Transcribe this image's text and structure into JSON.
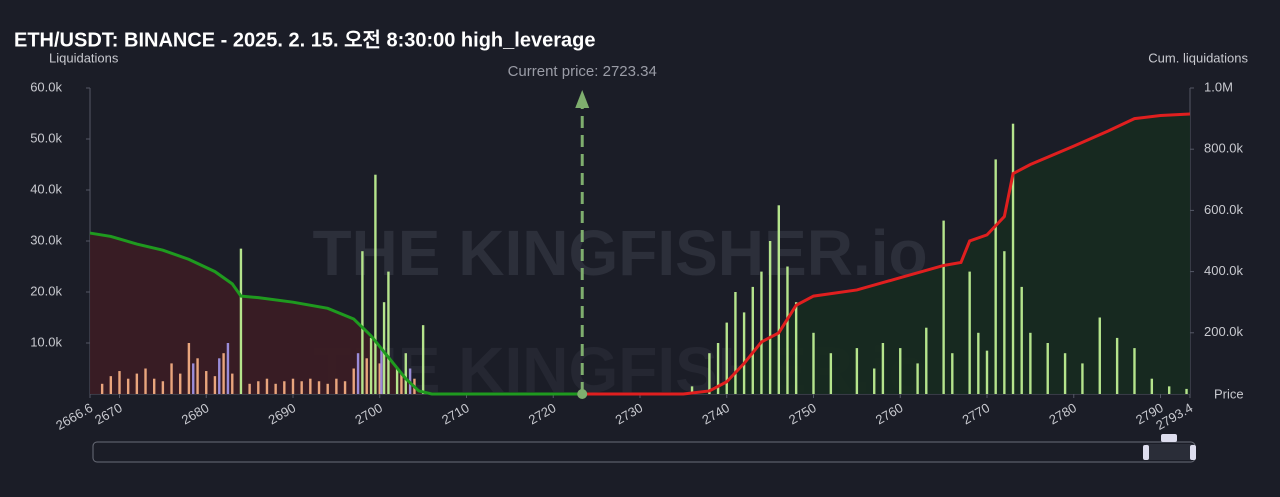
{
  "chart_data": {
    "type": "bar",
    "title": "ETH/USDT: BINANCE - 2025. 2. 15. 오전 8:30:00 high_leverage",
    "y_label": "Liquidations",
    "y2_label": "Cum. liquidations",
    "x_label": "Price",
    "watermark": "THE KINGFISHER.io",
    "xlim": [
      2666.6,
      2793.4
    ],
    "xticks": [
      2666.6,
      2670,
      2680,
      2690,
      2700,
      2710,
      2720,
      2730,
      2740,
      2750,
      2760,
      2770,
      2780,
      2790,
      2793.4
    ],
    "ylim": [
      0,
      60000
    ],
    "yticks": [
      {
        "value": 10000,
        "label": "10.0k"
      },
      {
        "value": 20000,
        "label": "20.0k"
      },
      {
        "value": 30000,
        "label": "30.0k"
      },
      {
        "value": 40000,
        "label": "40.0k"
      },
      {
        "value": 50000,
        "label": "50.0k"
      },
      {
        "value": 60000,
        "label": "60.0k"
      }
    ],
    "y2lim": [
      0,
      1000000
    ],
    "y2ticks": [
      {
        "value": 200000,
        "label": "200.0k"
      },
      {
        "value": 400000,
        "label": "400.0k"
      },
      {
        "value": 600000,
        "label": "600.0k"
      },
      {
        "value": 800000,
        "label": "800.0k"
      },
      {
        "value": 1000000,
        "label": "1.0M"
      }
    ],
    "current_price": {
      "value": 2723.34,
      "label": "Current price: 2723.34"
    },
    "series": [
      {
        "color": "#e9a57d",
        "x": [
          2668,
          2669,
          2670,
          2671,
          2672,
          2673,
          2674,
          2675,
          2676,
          2677,
          2678,
          2679,
          2680,
          2681,
          2682,
          2683,
          2685,
          2686,
          2687,
          2688,
          2689,
          2690,
          2691,
          2692,
          2693,
          2694,
          2695,
          2696,
          2697,
          2698.5,
          2700,
          2702.5,
          2704
        ],
        "values": [
          2000,
          3500,
          4500,
          3000,
          4000,
          5000,
          3000,
          2500,
          6000,
          4000,
          10000,
          7000,
          4500,
          3500,
          8000,
          4000,
          2000,
          2500,
          3000,
          2000,
          2500,
          3000,
          2500,
          3000,
          2500,
          2000,
          3000,
          2500,
          5000,
          7000,
          6000,
          4000,
          3000
        ]
      },
      {
        "color": "#9a8cd8",
        "x": [
          2678.5,
          2681.5,
          2682.5,
          2697.5,
          2700.2,
          2703.5
        ],
        "values": [
          6000,
          7000,
          10000,
          8000,
          9000,
          5000
        ]
      },
      {
        "color": "#b5e48c",
        "x": [
          2684,
          2698,
          2699,
          2699.5,
          2700.5,
          2701,
          2702,
          2703,
          2705,
          2736,
          2738,
          2739,
          2740,
          2741,
          2742,
          2743,
          2744,
          2745,
          2746,
          2747,
          2748,
          2750,
          2752,
          2755,
          2757,
          2758,
          2760,
          2762,
          2763,
          2765,
          2766,
          2768,
          2769,
          2770,
          2771,
          2772,
          2773,
          2774,
          2775,
          2777,
          2779,
          2781,
          2783,
          2785,
          2787,
          2789,
          2791,
          2793
        ],
        "values": [
          28500,
          28000,
          11000,
          43000,
          18000,
          24000,
          5000,
          8000,
          13500,
          1500,
          8000,
          10000,
          14000,
          20000,
          16000,
          21000,
          24000,
          30000,
          37000,
          25000,
          18000,
          12000,
          8000,
          9000,
          5000,
          10000,
          9000,
          6000,
          13000,
          34000,
          8000,
          24000,
          12000,
          8500,
          46000,
          28000,
          53000,
          21000,
          12000,
          10000,
          8000,
          6000,
          15000,
          11000,
          9000,
          3000,
          1500,
          1000
        ]
      }
    ],
    "cum_series": [
      {
        "color": "#1f9a1f",
        "fill": "#3a1c24",
        "axis": "y2",
        "x": [
          2666.6,
          2669,
          2672,
          2675,
          2678,
          2681,
          2683,
          2684,
          2686,
          2690,
          2694,
          2697,
          2699,
          2701,
          2703,
          2704.5,
          2706,
          2723.34
        ],
        "values": [
          526000,
          515000,
          490000,
          470000,
          440000,
          400000,
          360000,
          320000,
          315000,
          300000,
          280000,
          245000,
          190000,
          120000,
          50000,
          10000,
          0,
          0
        ]
      },
      {
        "color": "#e01f1f",
        "fill": "#172a20",
        "axis": "y2",
        "x": [
          2723.34,
          2735,
          2738,
          2740,
          2742,
          2744,
          2746,
          2748,
          2750,
          2755,
          2760,
          2765,
          2767,
          2768,
          2770,
          2772,
          2773,
          2775,
          2780,
          2784,
          2787,
          2790,
          2793.4
        ],
        "values": [
          0,
          0,
          10000,
          40000,
          100000,
          170000,
          200000,
          290000,
          320000,
          340000,
          380000,
          420000,
          430000,
          500000,
          520000,
          580000,
          720000,
          750000,
          810000,
          860000,
          900000,
          910000,
          915000
        ]
      }
    ]
  }
}
